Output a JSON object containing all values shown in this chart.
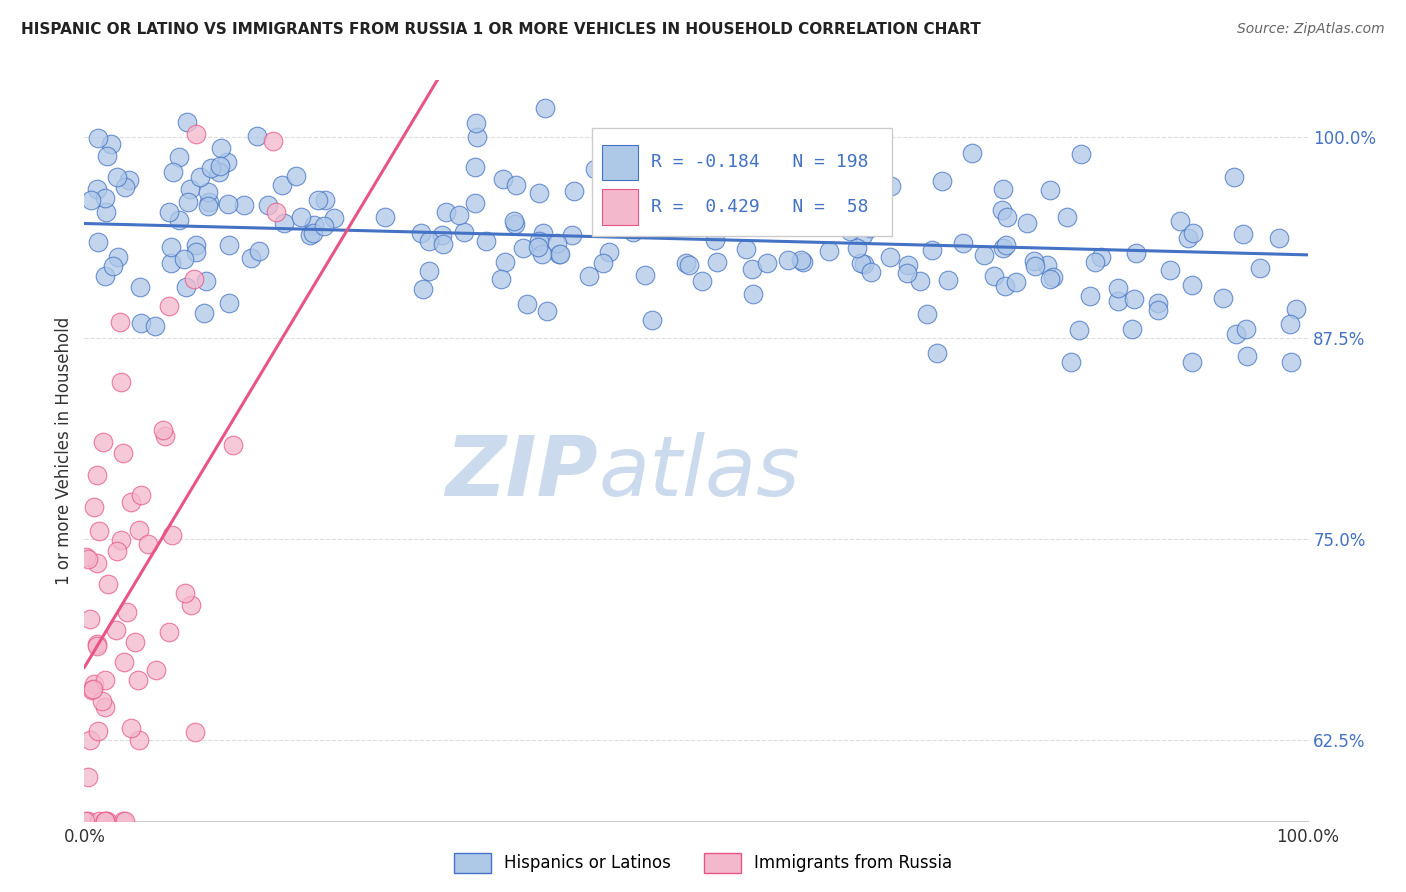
{
  "title": "HISPANIC OR LATINO VS IMMIGRANTS FROM RUSSIA 1 OR MORE VEHICLES IN HOUSEHOLD CORRELATION CHART",
  "source": "Source: ZipAtlas.com",
  "ylabel": "1 or more Vehicles in Household",
  "ytick_labels": [
    "62.5%",
    "75.0%",
    "87.5%",
    "100.0%"
  ],
  "ytick_values": [
    0.625,
    0.75,
    0.875,
    1.0
  ],
  "legend_entry1": {
    "label": "Hispanics or Latinos",
    "R": -0.184,
    "N": 198
  },
  "legend_entry2": {
    "label": "Immigrants from Russia",
    "R": 0.429,
    "N": 58
  },
  "blue_color": "#4472c4",
  "pink_color": "#e85585",
  "blue_fill": "#aec8e8",
  "pink_fill": "#f4b8cc",
  "watermark_zip": "ZIP",
  "watermark_atlas": "atlas",
  "watermark_color": "#ccdaed",
  "xmin": 0.0,
  "xmax": 1.0,
  "ymin": 0.575,
  "ymax": 1.035,
  "grid_color": "#dddddd",
  "tick_color": "#4472c4",
  "title_color": "#222222",
  "source_color": "#666666"
}
